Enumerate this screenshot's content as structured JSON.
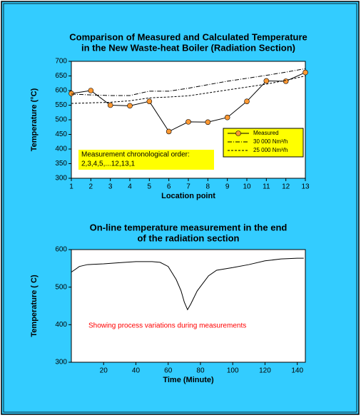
{
  "chart_data": [
    {
      "type": "line",
      "title": [
        "Comparison of Measured and Calculated Temperature",
        "in the New Waste-heat Boiler (Radiation Section)"
      ],
      "x_label": "Location point",
      "y_label": "Temperature (°C)",
      "x": [
        1,
        2,
        3,
        4,
        5,
        6,
        7,
        8,
        9,
        10,
        11,
        12,
        13
      ],
      "xlim": [
        1,
        13
      ],
      "xticks": [
        1,
        2,
        3,
        4,
        5,
        6,
        7,
        8,
        9,
        10,
        11,
        12,
        13
      ],
      "ylim": [
        300,
        700
      ],
      "yticks": [
        300,
        350,
        400,
        450,
        500,
        550,
        600,
        650,
        700
      ],
      "series": [
        {
          "name": "Measured",
          "color": "#000000",
          "marker_color": "#ff9933",
          "style": "solid",
          "values": [
            590,
            600,
            550,
            548,
            563,
            460,
            493,
            492,
            508,
            563,
            633,
            632,
            662
          ]
        },
        {
          "name": "30 000 Nm³/h",
          "color": "#000000",
          "style": "dash-dot",
          "values": [
            588,
            585,
            583,
            583,
            598,
            598,
            608,
            620,
            632,
            642,
            652,
            663,
            675
          ]
        },
        {
          "name": "25 000 Nm³/h",
          "color": "#000000",
          "style": "dash",
          "values": [
            556,
            558,
            560,
            565,
            575,
            578,
            582,
            592,
            602,
            612,
            622,
            635,
            650
          ]
        }
      ],
      "annotation": [
        "Measurement chronological order:",
        "2,3,4,5,...12,13,1"
      ]
    },
    {
      "type": "line",
      "title": [
        "On-line temperature measurement in the end",
        "of the radiation section"
      ],
      "x_label": "Time (Minute)",
      "y_label": "Temperature ( C)",
      "xlim": [
        0,
        145
      ],
      "xticks": [
        20,
        40,
        60,
        80,
        100,
        120,
        140
      ],
      "ylim": [
        300,
        600
      ],
      "yticks": [
        300,
        400,
        500,
        600
      ],
      "x": [
        0,
        5,
        10,
        20,
        30,
        40,
        50,
        55,
        60,
        65,
        68,
        70,
        72,
        74,
        78,
        85,
        90,
        100,
        110,
        120,
        130,
        140,
        144
      ],
      "series": [
        {
          "color": "#000000",
          "style": "solid",
          "values": [
            540,
            555,
            560,
            562,
            565,
            568,
            568,
            566,
            555,
            520,
            490,
            460,
            440,
            455,
            490,
            530,
            545,
            552,
            560,
            570,
            575,
            577,
            577
          ]
        }
      ],
      "annotation": [
        "Showing process variations during measurements"
      ]
    }
  ]
}
